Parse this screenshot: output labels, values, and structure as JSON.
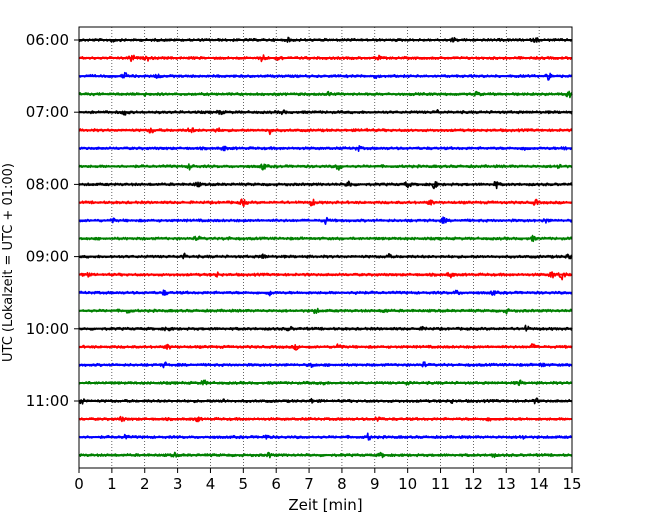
{
  "chart_data": {
    "type": "line",
    "title": "",
    "xlabel": "Zeit  [min]",
    "ylabel": "UTC (Lokalzeit = UTC + 01:00)",
    "xlim": [
      0,
      15
    ],
    "xticks": [
      "0",
      "1",
      "2",
      "3",
      "4",
      "5",
      "6",
      "7",
      "8",
      "9",
      "10",
      "11",
      "12",
      "13",
      "14",
      "15"
    ],
    "ytick_labels": [
      "06:00",
      "07:00",
      "08:00",
      "09:00",
      "10:00",
      "11:00"
    ],
    "row_interval_min": 15,
    "first_row_time": "06:00",
    "rows": 24,
    "grid": "vertical dotted at each minute",
    "colors": [
      "#000000",
      "#ff0000",
      "#0000ff",
      "#008000"
    ],
    "series": [
      {
        "time": "06:00",
        "color": "#000000",
        "events": [
          [
            1.0,
            0.9
          ],
          [
            6.4,
            0.7
          ],
          [
            11.4,
            0.7
          ],
          [
            13.9,
            0.8
          ]
        ]
      },
      {
        "time": "06:15",
        "color": "#ff0000",
        "events": [
          [
            1.6,
            1.6
          ],
          [
            2.1,
            0.9
          ],
          [
            5.6,
            1.8
          ],
          [
            6.1,
            1.2
          ],
          [
            9.1,
            0.8
          ]
        ]
      },
      {
        "time": "06:30",
        "color": "#0000ff",
        "events": [
          [
            1.4,
            1.2
          ],
          [
            2.4,
            0.9
          ],
          [
            9.0,
            0.7
          ],
          [
            14.3,
            1.4
          ]
        ]
      },
      {
        "time": "06:45",
        "color": "#008000",
        "events": [
          [
            2.0,
            0.7
          ],
          [
            7.6,
            0.8
          ],
          [
            12.1,
            0.8
          ],
          [
            14.9,
            1.2
          ]
        ]
      },
      {
        "time": "07:00",
        "color": "#000000",
        "events": [
          [
            1.4,
            1.2
          ],
          [
            4.3,
            0.8
          ],
          [
            6.2,
            0.7
          ],
          [
            10.9,
            0.7
          ]
        ]
      },
      {
        "time": "07:15",
        "color": "#ff0000",
        "events": [
          [
            2.2,
            1.2
          ],
          [
            3.4,
            1.3
          ],
          [
            4.2,
            1.0
          ],
          [
            5.8,
            1.4
          ],
          [
            8.7,
            0.7
          ]
        ]
      },
      {
        "time": "07:30",
        "color": "#0000ff",
        "events": [
          [
            4.4,
            0.8
          ],
          [
            8.5,
            0.9
          ],
          [
            13.6,
            1.0
          ],
          [
            14.8,
            0.9
          ]
        ]
      },
      {
        "time": "07:45",
        "color": "#008000",
        "events": [
          [
            3.4,
            1.4
          ],
          [
            5.6,
            1.3
          ],
          [
            7.9,
            1.5
          ],
          [
            14.6,
            1.0
          ]
        ]
      },
      {
        "time": "08:00",
        "color": "#000000",
        "events": [
          [
            3.6,
            1.0
          ],
          [
            8.2,
            1.6
          ],
          [
            10.0,
            1.4
          ],
          [
            10.8,
            2.0
          ],
          [
            12.7,
            1.3
          ]
        ]
      },
      {
        "time": "08:15",
        "color": "#ff0000",
        "events": [
          [
            5.0,
            1.7
          ],
          [
            7.1,
            1.4
          ],
          [
            10.7,
            1.0
          ],
          [
            13.9,
            1.0
          ]
        ]
      },
      {
        "time": "08:30",
        "color": "#0000ff",
        "events": [
          [
            1.0,
            0.9
          ],
          [
            7.5,
            1.3
          ],
          [
            11.1,
            1.0
          ],
          [
            14.2,
            0.9
          ]
        ]
      },
      {
        "time": "08:45",
        "color": "#008000",
        "events": [
          [
            3.6,
            0.9
          ],
          [
            4.5,
            0.8
          ],
          [
            13.8,
            0.9
          ]
        ]
      },
      {
        "time": "09:00",
        "color": "#000000",
        "events": [
          [
            3.2,
            1.0
          ],
          [
            5.6,
            1.0
          ],
          [
            9.4,
            1.0
          ],
          [
            14.9,
            1.2
          ]
        ]
      },
      {
        "time": "09:15",
        "color": "#ff0000",
        "events": [
          [
            0.2,
            1.5
          ],
          [
            4.2,
            1.0
          ],
          [
            11.3,
            1.2
          ],
          [
            14.4,
            1.4
          ],
          [
            14.7,
            2.5
          ]
        ]
      },
      {
        "time": "09:30",
        "color": "#0000ff",
        "events": [
          [
            2.6,
            0.9
          ],
          [
            5.8,
            1.1
          ],
          [
            8.5,
            1.1
          ],
          [
            11.5,
            0.9
          ],
          [
            12.6,
            0.8
          ]
        ]
      },
      {
        "time": "09:45",
        "color": "#008000",
        "events": [
          [
            1.5,
            0.9
          ],
          [
            7.2,
            1.0
          ],
          [
            9.3,
            0.8
          ],
          [
            13.0,
            0.8
          ]
        ]
      },
      {
        "time": "10:00",
        "color": "#000000",
        "events": [
          [
            2.7,
            1.0
          ],
          [
            6.4,
            0.8
          ],
          [
            10.5,
            0.8
          ],
          [
            13.6,
            1.2
          ]
        ]
      },
      {
        "time": "10:15",
        "color": "#ff0000",
        "events": [
          [
            2.7,
            1.0
          ],
          [
            6.6,
            0.9
          ],
          [
            7.9,
            1.6
          ],
          [
            13.8,
            1.0
          ]
        ]
      },
      {
        "time": "10:30",
        "color": "#0000ff",
        "events": [
          [
            2.6,
            0.9
          ],
          [
            7.1,
            0.9
          ],
          [
            10.5,
            0.9
          ],
          [
            14.1,
            0.8
          ]
        ]
      },
      {
        "time": "10:45",
        "color": "#008000",
        "events": [
          [
            3.8,
            1.0
          ],
          [
            7.4,
            0.9
          ],
          [
            10.0,
            1.0
          ],
          [
            13.4,
            0.9
          ]
        ]
      },
      {
        "time": "11:00",
        "color": "#000000",
        "events": [
          [
            0.1,
            1.3
          ],
          [
            4.4,
            0.8
          ],
          [
            7.1,
            0.8
          ],
          [
            11.3,
            0.8
          ],
          [
            13.9,
            0.9
          ]
        ]
      },
      {
        "time": "11:15",
        "color": "#ff0000",
        "events": [
          [
            1.3,
            0.9
          ],
          [
            3.6,
            0.9
          ],
          [
            9.1,
            1.4
          ],
          [
            12.5,
            0.8
          ]
        ]
      },
      {
        "time": "11:30",
        "color": "#0000ff",
        "events": [
          [
            1.4,
            0.9
          ],
          [
            5.7,
            0.9
          ],
          [
            8.8,
            1.3
          ],
          [
            13.5,
            0.9
          ]
        ]
      },
      {
        "time": "11:45",
        "color": "#008000",
        "events": [
          [
            2.9,
            0.8
          ],
          [
            5.8,
            0.9
          ],
          [
            9.2,
            0.8
          ],
          [
            12.6,
            0.8
          ]
        ]
      }
    ]
  }
}
